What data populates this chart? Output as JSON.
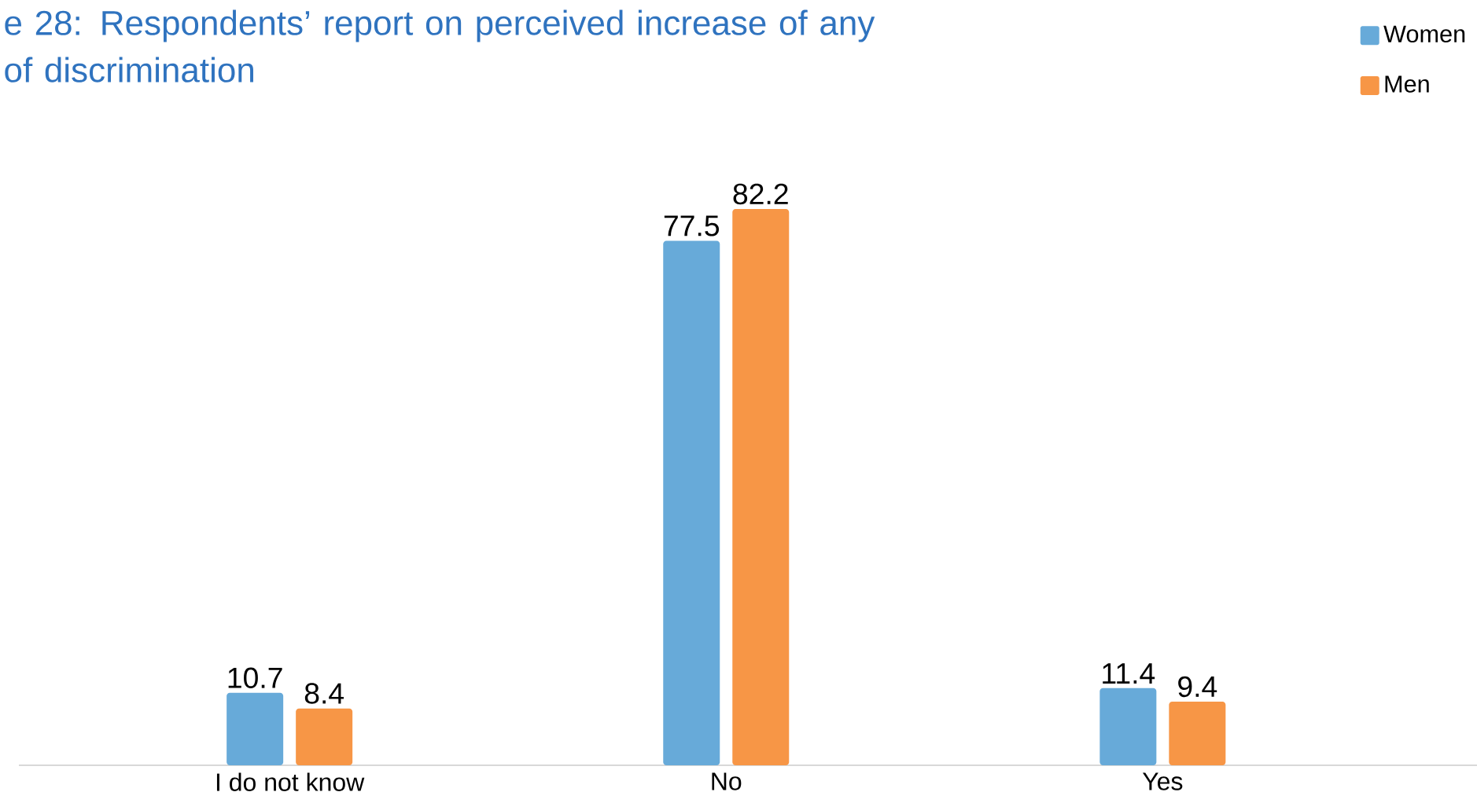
{
  "chart_data": {
    "type": "bar",
    "title": "e 28: Respondents’ report on perceived increase of any\nof discrimination",
    "categories": [
      "I do not know",
      "No",
      "Yes"
    ],
    "series": [
      {
        "name": "Women",
        "color": "#67aad9",
        "values": [
          10.7,
          77.5,
          11.4
        ]
      },
      {
        "name": "Men",
        "color": "#f79646",
        "values": [
          8.4,
          82.2,
          9.4
        ]
      }
    ],
    "data_labels": true,
    "legend": "top right"
  }
}
